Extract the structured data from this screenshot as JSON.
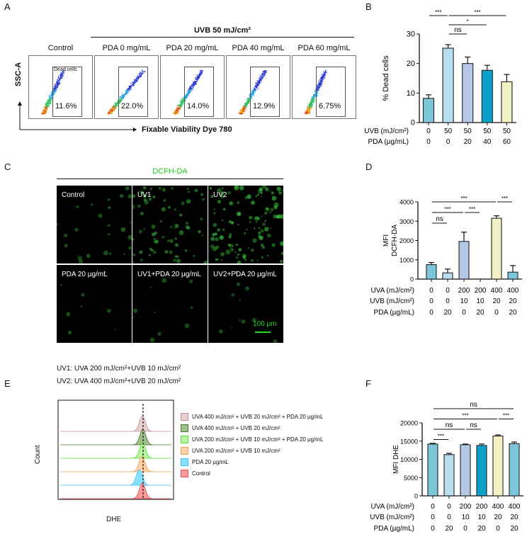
{
  "panel_letters": {
    "a": "A",
    "b": "B",
    "c": "C",
    "d": "D",
    "e": "E",
    "f": "F"
  },
  "panel_a": {
    "group_header": "UVB 50 mJ/cm²",
    "y_axis": "SSC-A",
    "x_axis": "Fixable Viability Dye 780",
    "gate_label": "Dead cells",
    "plots": [
      {
        "title": "Control",
        "percent": "11.6%"
      },
      {
        "title": "PDA 0 mg/mL",
        "percent": "22.0%"
      },
      {
        "title": "PDA 20 mg/mL",
        "percent": "14.0%"
      },
      {
        "title": "PDA 40 mg/mL",
        "percent": "12.9%"
      },
      {
        "title": "PDA 60 mg/mL",
        "percent": "6.75%"
      }
    ]
  },
  "panel_c": {
    "title": "DCFH-DA",
    "title_color": "#22cc22",
    "tiles": [
      {
        "label": "Control",
        "intensity": 0.15
      },
      {
        "label": "UV1",
        "intensity": 0.45
      },
      {
        "label": "UV2",
        "intensity": 0.7
      },
      {
        "label": "PDA 20 µg/mL",
        "intensity": 0.05
      },
      {
        "label": "UV1+PDA 20 µg/mL",
        "intensity": 0.06
      },
      {
        "label": "UV2+PDA 20 µg/mL",
        "intensity": 0.07
      }
    ],
    "scale_bar": "100 µm",
    "notes": [
      "UV1: UVA 200 mJ/cm²+UVB 10 mJ/cm²",
      "UV2: UVA 400 mJ/cm²+UVB 20 mJ/cm²"
    ]
  },
  "panel_e": {
    "x_axis": "DHE",
    "y_axis": "Count",
    "legend": [
      {
        "label": "UVA 400 mJ/cm² + UVB 20 mJ/cm² + PDA 20 µg/mL",
        "fill": "#e8d0d0",
        "stroke": "#c09090"
      },
      {
        "label": "UVA 400 mJ/cm² + UVB 20 mJ/cm²",
        "fill": "#9fbf88",
        "stroke": "#4a7a30"
      },
      {
        "label": "UVA 200 mJ/cm² + UVB 10 mJ/cm² + PDA 20 µg/mL",
        "fill": "#b8f5a0",
        "stroke": "#55dd33"
      },
      {
        "label": "UVA 200 mJ/cm² + UVB 10 mJ/cm²",
        "fill": "#ffd0a8",
        "stroke": "#f0a050"
      },
      {
        "label": "PDA 20 µg/mL",
        "fill": "#88e0ff",
        "stroke": "#40c0f0"
      },
      {
        "label": "Control",
        "fill": "#ff9a9a",
        "stroke": "#e05050"
      }
    ]
  },
  "chart_data": [
    {
      "id": "B",
      "type": "bar",
      "ylabel": "% Dead cells",
      "ylim": [
        0,
        30
      ],
      "yticks": [
        0,
        10,
        20,
        30
      ],
      "row_labels": [
        "UVB (mJ/cm²)",
        "PDA (µg/mL)"
      ],
      "rows": [
        [
          "0",
          "50",
          "50",
          "50",
          "50"
        ],
        [
          "0",
          "0",
          "20",
          "40",
          "60"
        ]
      ],
      "values": [
        8.2,
        25.2,
        20.0,
        17.7,
        13.8
      ],
      "errors": [
        1.2,
        1.2,
        2.2,
        1.7,
        2.5
      ],
      "colors": [
        "#7cc6db",
        "#b9def0",
        "#b6c7e8",
        "#0aa1cd",
        "#f1f1c4"
      ],
      "significance": [
        {
          "from": 0,
          "to": 1,
          "label": "***",
          "tier": 0
        },
        {
          "from": 1,
          "to": 4,
          "label": "***",
          "tier": 0
        },
        {
          "from": 1,
          "to": 3,
          "label": "*",
          "tier": 1
        },
        {
          "from": 1,
          "to": 2,
          "label": "ns",
          "tier": 2
        }
      ]
    },
    {
      "id": "D",
      "type": "bar",
      "ylabel": "MFI\nDCFH-DA",
      "ylim": [
        0,
        4000
      ],
      "yticks": [
        0,
        1000,
        2000,
        3000,
        4000
      ],
      "row_labels": [
        "UVA (mJ/cm²)",
        "UVB (mJ/cm²)",
        "PDA (µg/mL)"
      ],
      "rows": [
        [
          "0",
          "0",
          "200",
          "200",
          "400",
          "400"
        ],
        [
          "0",
          "0",
          "10",
          "10",
          "20",
          "20"
        ],
        [
          "0",
          "20",
          "0",
          "20",
          "0",
          "20"
        ]
      ],
      "values": [
        750,
        320,
        1950,
        0,
        3150,
        360
      ],
      "errors": [
        110,
        200,
        480,
        0,
        130,
        340
      ],
      "colors": [
        "#7cc6db",
        "#b9def0",
        "#b6c7e8",
        "#0aa1cd",
        "#f1f1c4",
        "#7cc6db"
      ],
      "significance": [
        {
          "from": 0,
          "to": 4,
          "label": "***",
          "tier": 0
        },
        {
          "from": 4,
          "to": 5,
          "label": "***",
          "tier": 0
        },
        {
          "from": 0,
          "to": 2,
          "label": "***",
          "tier": 1
        },
        {
          "from": 2,
          "to": 3,
          "label": "***",
          "tier": 1
        },
        {
          "from": 0,
          "to": 1,
          "label": "ns",
          "tier": 2
        }
      ]
    },
    {
      "id": "F",
      "type": "bar",
      "ylabel": "MFI DHE",
      "ylim": [
        0,
        20000
      ],
      "yticks": [
        0,
        5000,
        10000,
        15000,
        20000
      ],
      "row_labels": [
        "UVA (mJ/cm²)",
        "UVB (mJ/cm²)",
        "PDA (µg/mL)"
      ],
      "rows": [
        [
          "0",
          "0",
          "200",
          "200",
          "400",
          "400"
        ],
        [
          "0",
          "0",
          "10",
          "10",
          "20",
          "20"
        ],
        [
          "0",
          "20",
          "0",
          "20",
          "0",
          "20"
        ]
      ],
      "values": [
        14200,
        11300,
        14000,
        13800,
        16400,
        14300
      ],
      "errors": [
        200,
        350,
        200,
        400,
        300,
        450
      ],
      "colors": [
        "#7cc6db",
        "#b9def0",
        "#b6c7e8",
        "#0aa1cd",
        "#f1f1c4",
        "#7cc6db"
      ],
      "significance": [
        {
          "from": 0,
          "to": 5,
          "label": "ns",
          "tier": 0
        },
        {
          "from": 0,
          "to": 4,
          "label": "***",
          "tier": 1
        },
        {
          "from": 4,
          "to": 5,
          "label": "***",
          "tier": 1
        },
        {
          "from": 0,
          "to": 2,
          "label": "ns",
          "tier": 2
        },
        {
          "from": 2,
          "to": 3,
          "label": "ns",
          "tier": 2
        },
        {
          "from": 0,
          "to": 1,
          "label": "***",
          "tier": 3
        }
      ]
    }
  ]
}
